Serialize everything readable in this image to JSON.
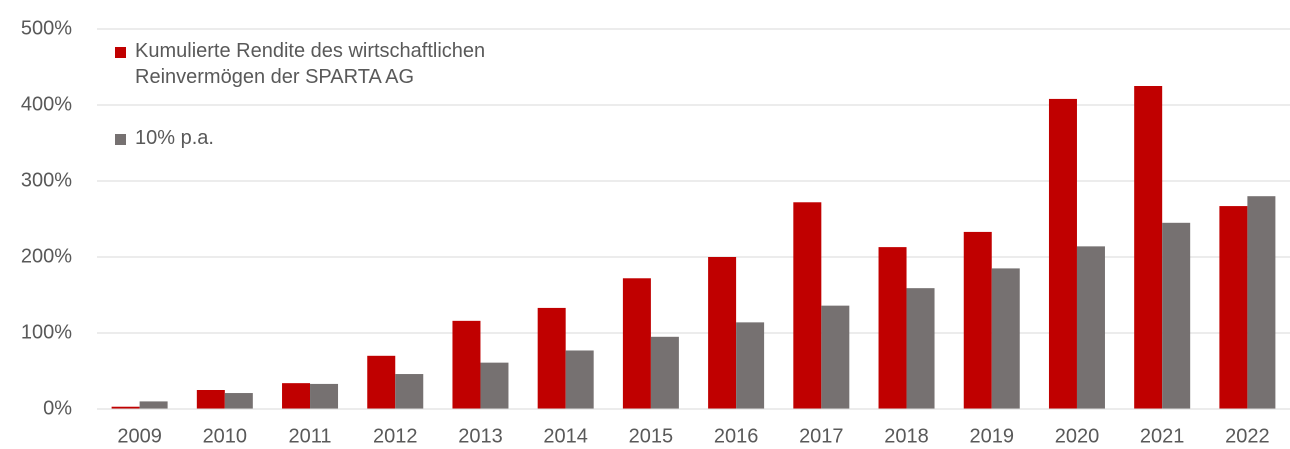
{
  "chart_data": {
    "type": "bar",
    "categories": [
      "2009",
      "2010",
      "2011",
      "2012",
      "2013",
      "2014",
      "2015",
      "2016",
      "2017",
      "2018",
      "2019",
      "2020",
      "2021",
      "2022"
    ],
    "series": [
      {
        "name": "Kumulierte Rendite des wirtschaftlichen Reinvermögen der SPARTA AG",
        "color": "#c00000",
        "values": [
          3,
          25,
          34,
          70,
          116,
          133,
          172,
          200,
          272,
          213,
          233,
          408,
          425,
          267
        ]
      },
      {
        "name": "10% p.a.",
        "color": "#767171",
        "values": [
          10,
          21,
          33,
          46,
          61,
          77,
          95,
          114,
          136,
          159,
          185,
          214,
          245,
          280
        ]
      }
    ],
    "ylim": [
      0,
      500
    ],
    "yticks": [
      {
        "value": 0,
        "label": "0%"
      },
      {
        "value": 100,
        "label": "100%"
      },
      {
        "value": 200,
        "label": "200%"
      },
      {
        "value": 300,
        "label": "300%"
      },
      {
        "value": 400,
        "label": "400%"
      },
      {
        "value": 500,
        "label": "500%"
      }
    ],
    "grid": true,
    "legend": "top-left"
  }
}
